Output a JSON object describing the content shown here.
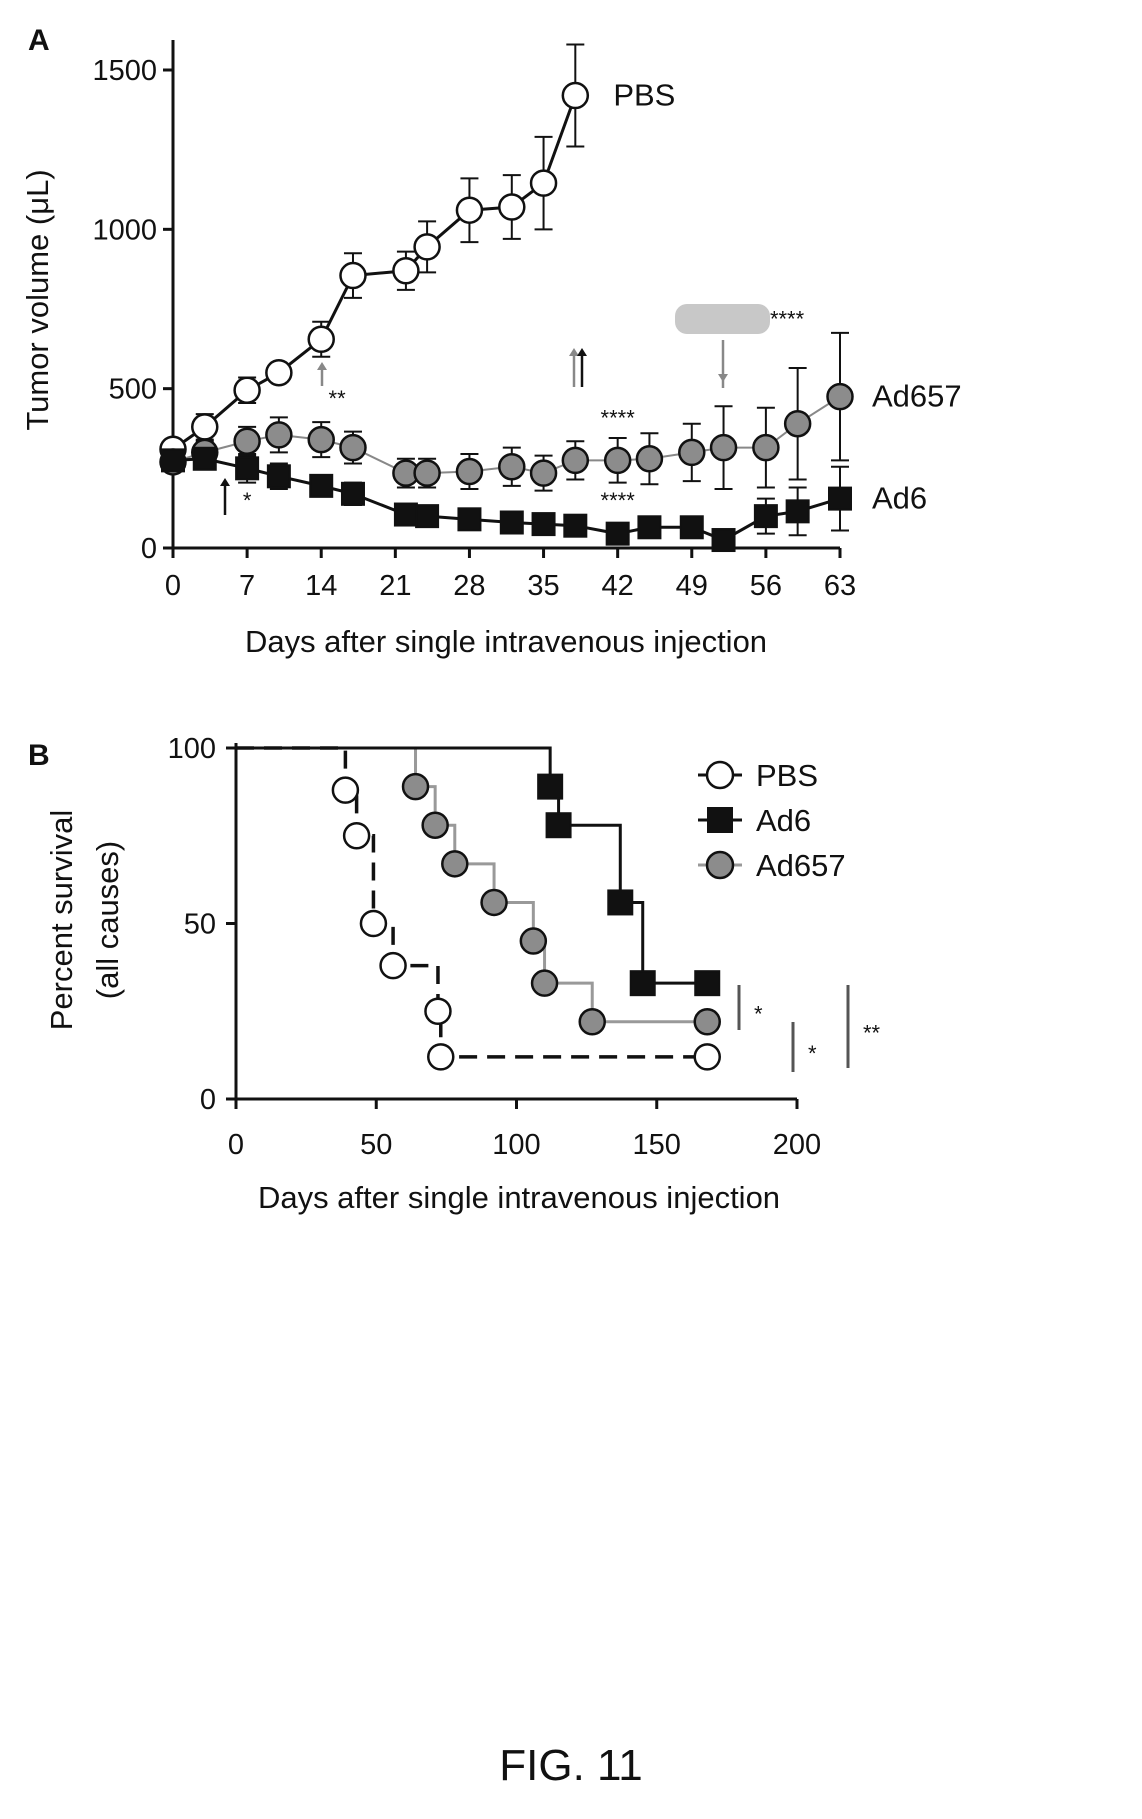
{
  "panel_a_label": "A",
  "panel_b_label": "B",
  "caption": "FIG. 11",
  "chart_data": [
    {
      "panel": "A",
      "type": "line",
      "xlabel": "Days after single intravenous injection",
      "ylabel": "Tumor volume (μL)",
      "xlim": [
        0,
        63
      ],
      "ylim": [
        0,
        1500
      ],
      "xticks": [
        0,
        7,
        14,
        21,
        28,
        35,
        42,
        49,
        56,
        63
      ],
      "yticks": [
        0,
        500,
        1000,
        1500
      ],
      "grid": false,
      "series": [
        {
          "name": "PBS",
          "marker": "open-circle",
          "color": "#111111",
          "x": [
            0,
            3,
            7,
            10,
            14,
            17,
            22,
            24,
            28,
            32,
            35,
            38
          ],
          "y": [
            310,
            380,
            495,
            550,
            655,
            855,
            870,
            945,
            1060,
            1070,
            1145,
            1420
          ],
          "err": [
            20,
            40,
            40,
            25,
            55,
            70,
            60,
            80,
            100,
            100,
            145,
            160
          ]
        },
        {
          "name": "Ad657",
          "marker": "gray-circle",
          "color": "#888888",
          "x": [
            0,
            3,
            7,
            10,
            14,
            17,
            22,
            24,
            28,
            32,
            35,
            38,
            42,
            45,
            49,
            52,
            56,
            59,
            63
          ],
          "y": [
            270,
            300,
            335,
            355,
            340,
            315,
            235,
            235,
            240,
            255,
            235,
            275,
            275,
            280,
            300,
            315,
            315,
            390,
            475
          ],
          "err": [
            25,
            35,
            45,
            55,
            55,
            50,
            45,
            45,
            55,
            60,
            55,
            60,
            70,
            80,
            90,
            130,
            125,
            175,
            200
          ]
        },
        {
          "name": "Ad6",
          "marker": "filled-square",
          "color": "#111111",
          "x": [
            0,
            3,
            7,
            10,
            14,
            17,
            22,
            24,
            28,
            32,
            35,
            38,
            42,
            45,
            49,
            52,
            56,
            59,
            63
          ],
          "y": [
            275,
            280,
            250,
            225,
            195,
            170,
            105,
            100,
            90,
            80,
            75,
            70,
            45,
            65,
            65,
            25,
            100,
            115,
            155
          ],
          "err": [
            15,
            25,
            45,
            40,
            30,
            35,
            25,
            20,
            25,
            20,
            25,
            25,
            20,
            30,
            30,
            15,
            55,
            75,
            100
          ]
        }
      ],
      "annotations": [
        {
          "text": "*",
          "x": 7,
          "y": 150
        },
        {
          "text": "**",
          "x": 15.5,
          "y": 470
        },
        {
          "text": "****",
          "x": 42,
          "y": 410
        },
        {
          "text": "****",
          "x": 42,
          "y": 150
        },
        {
          "text": "****",
          "x": 58,
          "y": 720
        }
      ]
    },
    {
      "panel": "B",
      "type": "line",
      "xlabel": "Days after single intravenous injection",
      "ylabel": "Percent survival",
      "ylabel2": "(all causes)",
      "xlim": [
        0,
        200
      ],
      "ylim": [
        0,
        100
      ],
      "xticks": [
        0,
        50,
        100,
        150,
        200
      ],
      "yticks": [
        0,
        50,
        100
      ],
      "grid": false,
      "legend_position": "top-right",
      "legend": [
        "PBS",
        "Ad6",
        "Ad657"
      ],
      "series": [
        {
          "name": "PBS",
          "style": "dashed",
          "marker": "open-circle",
          "color": "#111111",
          "x": [
            0,
            39,
            43,
            49,
            56,
            72,
            73,
            168
          ],
          "y": [
            100,
            88,
            75,
            50,
            38,
            25,
            12,
            12
          ]
        },
        {
          "name": "Ad6",
          "style": "solid",
          "marker": "filled-square",
          "color": "#111111",
          "x": [
            0,
            112,
            115,
            137,
            145,
            168
          ],
          "y": [
            100,
            89,
            78,
            56,
            33,
            33
          ]
        },
        {
          "name": "Ad657",
          "style": "solid",
          "marker": "gray-circle",
          "color": "#999999",
          "x": [
            0,
            64,
            71,
            78,
            92,
            106,
            110,
            127,
            168
          ],
          "y": [
            100,
            89,
            78,
            67,
            56,
            45,
            33,
            22,
            22
          ]
        }
      ],
      "significance": [
        "*",
        "*",
        "**"
      ]
    }
  ]
}
